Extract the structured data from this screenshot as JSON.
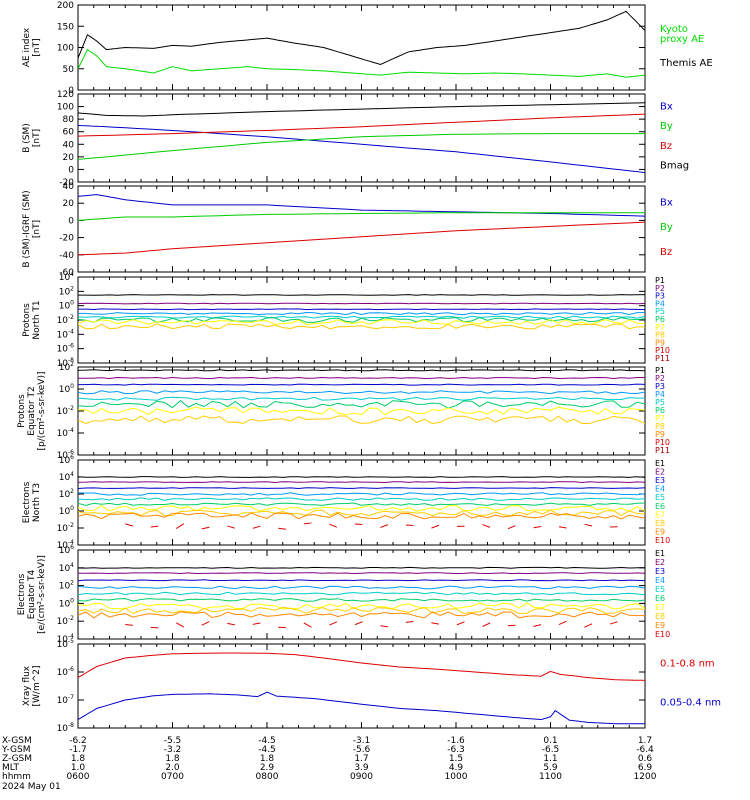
{
  "chart_data": [
    {
      "type": "line",
      "ylabel": "AE index\n[nT]",
      "ylim": [
        0,
        200
      ],
      "yscale": "linear",
      "ticks": [
        0,
        50,
        100,
        150,
        200
      ],
      "legend": [
        {
          "name": "Kyoto\nproxy AE",
          "color": "#00dd00"
        },
        {
          "name": "Themis AE",
          "color": "#000000"
        }
      ],
      "series": [
        {
          "name": "Themis AE",
          "color": "#000000",
          "t": [
            6.0,
            6.1,
            6.2,
            6.3,
            6.5,
            6.8,
            7.0,
            7.2,
            7.5,
            7.8,
            8.0,
            8.3,
            8.6,
            8.9,
            9.2,
            9.5,
            9.8,
            10.1,
            10.4,
            10.7,
            11.0,
            11.3,
            11.6,
            11.8,
            12.0
          ],
          "y": [
            75,
            130,
            115,
            95,
            100,
            98,
            105,
            103,
            112,
            118,
            122,
            110,
            100,
            80,
            60,
            90,
            100,
            105,
            115,
            125,
            135,
            145,
            165,
            185,
            140
          ]
        },
        {
          "name": "Kyoto proxy AE",
          "color": "#00dd00",
          "t": [
            6.0,
            6.1,
            6.2,
            6.3,
            6.5,
            6.8,
            7.0,
            7.2,
            7.5,
            7.8,
            8.0,
            8.3,
            8.6,
            8.9,
            9.2,
            9.5,
            9.8,
            10.1,
            10.4,
            10.7,
            11.0,
            11.3,
            11.6,
            11.8,
            12.0
          ],
          "y": [
            50,
            95,
            80,
            55,
            50,
            40,
            55,
            45,
            50,
            55,
            50,
            48,
            45,
            40,
            35,
            42,
            40,
            38,
            40,
            38,
            35,
            32,
            38,
            30,
            35
          ]
        }
      ]
    },
    {
      "type": "line",
      "ylabel": "B (SM)\n[nT]",
      "ylim": [
        -20,
        120
      ],
      "yscale": "linear",
      "ticks": [
        -20,
        0,
        20,
        40,
        60,
        80,
        100,
        120
      ],
      "legend": [
        {
          "name": "Bx",
          "color": "#0000cc"
        },
        {
          "name": "By",
          "color": "#00cc00"
        },
        {
          "name": "Bz",
          "color": "#dd0000"
        },
        {
          "name": "Bmag",
          "color": "#000000"
        }
      ],
      "series": [
        {
          "name": "Bx",
          "color": "#0000cc",
          "t": [
            6.0,
            6.3,
            7.0,
            8.0,
            9.0,
            10.0,
            11.0,
            12.0
          ],
          "y": [
            70,
            68,
            62,
            52,
            40,
            28,
            12,
            -5
          ]
        },
        {
          "name": "By",
          "color": "#00cc00",
          "t": [
            6.0,
            6.3,
            7.0,
            8.0,
            9.0,
            10.0,
            11.0,
            12.0
          ],
          "y": [
            16,
            20,
            30,
            43,
            52,
            56,
            57,
            57
          ]
        },
        {
          "name": "Bz",
          "color": "#dd0000",
          "t": [
            6.0,
            7.0,
            8.0,
            9.0,
            10.0,
            11.0,
            12.0
          ],
          "y": [
            53,
            57,
            62,
            68,
            75,
            82,
            88
          ]
        },
        {
          "name": "Bmag",
          "color": "#000000",
          "t": [
            6.0,
            6.3,
            6.7,
            7.0,
            8.0,
            9.0,
            10.0,
            11.0,
            12.0
          ],
          "y": [
            90,
            86,
            85,
            87,
            92,
            96,
            100,
            103,
            106
          ]
        }
      ]
    },
    {
      "type": "line",
      "ylabel": "B (SM)-IGRF (SM)\n[nT]",
      "ylim": [
        -60,
        40
      ],
      "yscale": "linear",
      "ticks": [
        -60,
        -40,
        -20,
        0,
        20,
        40
      ],
      "legend": [
        {
          "name": "Bx",
          "color": "#0000cc"
        },
        {
          "name": "By",
          "color": "#00cc00"
        },
        {
          "name": "Bz",
          "color": "#dd0000"
        }
      ],
      "series": [
        {
          "name": "Bx",
          "color": "#0000cc",
          "t": [
            6.0,
            6.2,
            6.5,
            7.0,
            8.0,
            9.0,
            10.0,
            11.0,
            12.0
          ],
          "y": [
            28,
            30,
            24,
            18,
            18,
            12,
            10,
            8,
            5
          ]
        },
        {
          "name": "By",
          "color": "#00cc00",
          "t": [
            6.0,
            6.5,
            7.0,
            8.0,
            9.0,
            10.0,
            11.0,
            12.0
          ],
          "y": [
            0,
            4,
            4,
            7,
            8,
            9,
            9,
            9
          ]
        },
        {
          "name": "Bz",
          "color": "#dd0000",
          "t": [
            6.0,
            6.5,
            7.0,
            8.0,
            9.0,
            10.0,
            11.0,
            12.0
          ],
          "y": [
            -40,
            -38,
            -33,
            -26,
            -19,
            -12,
            -7,
            -2
          ]
        }
      ]
    },
    {
      "type": "line",
      "ylabel": "Protons\nNorth T1",
      "ylim": [
        1e-08,
        10000.0
      ],
      "yscale": "log",
      "ticks_exp": [
        -8,
        -6,
        -4,
        -2,
        0,
        2,
        4
      ],
      "legend": [
        {
          "name": "P1",
          "color": "#000000"
        },
        {
          "name": "P2",
          "color": "#800080"
        },
        {
          "name": "P3",
          "color": "#0000cc"
        },
        {
          "name": "P4",
          "color": "#0099ff"
        },
        {
          "name": "P5",
          "color": "#00cccc"
        },
        {
          "name": "P6",
          "color": "#00cc66"
        },
        {
          "name": "P7",
          "color": "#ffff00"
        },
        {
          "name": "P8",
          "color": "#ffcc00"
        },
        {
          "name": "P9",
          "color": "#ff8800"
        },
        {
          "name": "P10",
          "color": "#dd0000"
        },
        {
          "name": "P11",
          "color": "#aa0000"
        }
      ],
      "levels_exp": [
        1.5,
        0.3,
        -0.5,
        -1.1,
        -1.6,
        -2.0,
        -2.3,
        -2.9
      ],
      "level_colors": [
        "#000000",
        "#800080",
        "#0000cc",
        "#0099ff",
        "#00cccc",
        "#00cc66",
        "#ffff00",
        "#ffcc00"
      ]
    },
    {
      "type": "line",
      "ylabel": "Protons\nEquator T2\n[p/(cm²-s-sr-keV)]",
      "ylim": [
        1e-06,
        100.0
      ],
      "yscale": "log",
      "ticks_exp": [
        -6,
        -4,
        -2,
        0,
        2
      ],
      "legend": [
        {
          "name": "P1",
          "color": "#000000"
        },
        {
          "name": "P2",
          "color": "#800080"
        },
        {
          "name": "P3",
          "color": "#0000cc"
        },
        {
          "name": "P4",
          "color": "#0099ff"
        },
        {
          "name": "P5",
          "color": "#00cccc"
        },
        {
          "name": "P6",
          "color": "#00cc66"
        },
        {
          "name": "P7",
          "color": "#ffff00"
        },
        {
          "name": "P8",
          "color": "#ffcc00"
        },
        {
          "name": "P9",
          "color": "#ff8800"
        },
        {
          "name": "P10",
          "color": "#dd0000"
        },
        {
          "name": "P11",
          "color": "#aa0000"
        }
      ],
      "levels_exp": [
        1.7,
        1.0,
        0.4,
        -0.3,
        -0.9,
        -1.4,
        -2.0,
        -2.8
      ],
      "level_colors": [
        "#000000",
        "#800080",
        "#0000cc",
        "#0099ff",
        "#00cccc",
        "#00cc66",
        "#ffff00",
        "#ffcc00"
      ]
    },
    {
      "type": "line",
      "ylabel": "Electrons\nNorth T3",
      "ylim": [
        0.0001,
        1000000.0
      ],
      "yscale": "log",
      "ticks_exp": [
        -4,
        -2,
        0,
        2,
        4,
        6
      ],
      "legend": [
        {
          "name": "E1",
          "color": "#000000"
        },
        {
          "name": "E2",
          "color": "#800080"
        },
        {
          "name": "E3",
          "color": "#0000cc"
        },
        {
          "name": "E4",
          "color": "#0099ff"
        },
        {
          "name": "E5",
          "color": "#00cccc"
        },
        {
          "name": "E6",
          "color": "#00cc66"
        },
        {
          "name": "E7",
          "color": "#ffff00"
        },
        {
          "name": "E8",
          "color": "#ffcc00"
        },
        {
          "name": "E9",
          "color": "#ff8800"
        },
        {
          "name": "E10",
          "color": "#dd0000"
        }
      ],
      "levels_exp": [
        4.0,
        3.4,
        2.7,
        2.0,
        1.4,
        0.8,
        0.3,
        -0.2,
        -0.6
      ],
      "level_colors": [
        "#000000",
        "#800080",
        "#0000cc",
        "#0099ff",
        "#00cccc",
        "#00cc66",
        "#ffff00",
        "#ffcc00",
        "#ff8800"
      ],
      "sparse_exp": -1.8,
      "sparse_color": "#dd0000"
    },
    {
      "type": "line",
      "ylabel": "Electrons\nEquator T4\n[e/(cm²-s-sr-keV)]",
      "ylim": [
        0.0001,
        1000000.0
      ],
      "yscale": "log",
      "ticks_exp": [
        -4,
        -2,
        0,
        2,
        4,
        6
      ],
      "legend": [
        {
          "name": "E1",
          "color": "#000000"
        },
        {
          "name": "E2",
          "color": "#800080"
        },
        {
          "name": "E3",
          "color": "#0000cc"
        },
        {
          "name": "E4",
          "color": "#0099ff"
        },
        {
          "name": "E5",
          "color": "#00cccc"
        },
        {
          "name": "E6",
          "color": "#00cc66"
        },
        {
          "name": "E7",
          "color": "#ffff00"
        },
        {
          "name": "E8",
          "color": "#ffcc00"
        },
        {
          "name": "E9",
          "color": "#ff8800"
        },
        {
          "name": "E10",
          "color": "#dd0000"
        }
      ],
      "levels_exp": [
        4.0,
        3.4,
        2.6,
        1.8,
        1.1,
        0.4,
        -0.3,
        -0.8,
        -1.3
      ],
      "level_colors": [
        "#000000",
        "#800080",
        "#0000cc",
        "#0099ff",
        "#00cccc",
        "#00cc66",
        "#ffff00",
        "#ffcc00",
        "#ff8800"
      ],
      "sparse_exp": -2.4,
      "sparse_color": "#dd0000"
    },
    {
      "type": "line",
      "ylabel": "Xray flux\n[W/m^2]",
      "ylim": [
        1e-08,
        1e-05
      ],
      "yscale": "log",
      "ticks_exp": [
        -8,
        -7,
        -6,
        -5
      ],
      "legend": [
        {
          "name": "0.1-0.8 nm",
          "color": "#dd0000"
        },
        {
          "name": "0.05-0.4 nm",
          "color": "#0000cc"
        }
      ],
      "series": [
        {
          "name": "0.1-0.8 nm",
          "color": "#dd0000",
          "t": [
            6.0,
            6.2,
            6.5,
            6.8,
            7.0,
            7.3,
            7.6,
            8.0,
            8.3,
            8.6,
            9.0,
            9.4,
            9.8,
            10.2,
            10.6,
            10.9,
            11.0,
            11.1,
            11.4,
            11.7,
            12.0
          ],
          "y_exp": [
            -6.2,
            -5.8,
            -5.5,
            -5.4,
            -5.35,
            -5.33,
            -5.32,
            -5.33,
            -5.38,
            -5.5,
            -5.68,
            -5.82,
            -5.9,
            -6.0,
            -6.1,
            -6.15,
            -5.98,
            -6.08,
            -6.2,
            -6.28,
            -6.3
          ]
        },
        {
          "name": "0.05-0.4 nm",
          "color": "#0000cc",
          "t": [
            6.0,
            6.2,
            6.5,
            6.8,
            7.0,
            7.4,
            7.7,
            7.9,
            8.0,
            8.1,
            8.5,
            9.0,
            9.4,
            9.8,
            10.2,
            10.6,
            10.9,
            11.0,
            11.05,
            11.2,
            11.4,
            11.7,
            12.0
          ],
          "y_exp": [
            -7.7,
            -7.3,
            -7.0,
            -6.85,
            -6.8,
            -6.78,
            -6.82,
            -6.88,
            -6.72,
            -6.86,
            -6.95,
            -7.15,
            -7.3,
            -7.38,
            -7.5,
            -7.62,
            -7.7,
            -7.6,
            -7.38,
            -7.72,
            -7.8,
            -7.85,
            -7.85
          ]
        }
      ]
    }
  ],
  "footer": {
    "row_labels": [
      "X-GSM",
      "Y-GSM",
      "Z-GSM",
      "MLT",
      "hhmm"
    ],
    "date": "2024 May 01",
    "columns": [
      [
        "-6.2",
        "-1.7",
        "1.8",
        "1.0",
        "0600"
      ],
      [
        "-5.5",
        "-3.2",
        "1.8",
        "2.0",
        "0700"
      ],
      [
        "-4.5",
        "-4.5",
        "1.8",
        "2.9",
        "0800"
      ],
      [
        "-3.1",
        "-5.6",
        "1.7",
        "3.9",
        "0900"
      ],
      [
        "-1.6",
        "-6.3",
        "1.5",
        "4.9",
        "1000"
      ],
      [
        "0.1",
        "-6.5",
        "1.1",
        "5.9",
        "1100"
      ],
      [
        "1.7",
        "-6.4",
        "0.6",
        "6.9",
        "1200"
      ]
    ]
  }
}
